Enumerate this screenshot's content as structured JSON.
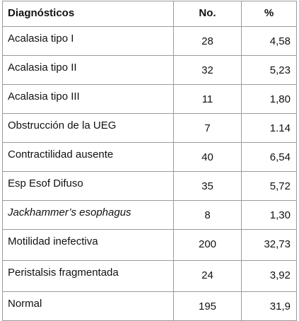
{
  "table": {
    "headers": [
      "Diagnósticos",
      "No.",
      "%"
    ],
    "rows": [
      {
        "diagnosis": "Acalasia tipo I",
        "no": "28",
        "pct": "4,58"
      },
      {
        "diagnosis": "Acalasia tipo II",
        "no": "32",
        "pct": "5,23"
      },
      {
        "diagnosis": "Acalasia tipo III",
        "no": "11",
        "pct": "1,80"
      },
      {
        "diagnosis": "Obstrucción de la UEG",
        "no": "7",
        "pct": "1.14"
      },
      {
        "diagnosis": "Contractilidad ausente",
        "no": "40",
        "pct": "6,54"
      },
      {
        "diagnosis": "Esp Esof Difuso",
        "no": "35",
        "pct": "5,72"
      },
      {
        "diagnosis": "Jackhammer’s esophagus",
        "no": "8",
        "pct": "1,30"
      },
      {
        "diagnosis": "Motilidad inefectiva",
        "no": "200",
        "pct": "32,73"
      },
      {
        "diagnosis": "Peristalsis fragmentada",
        "no": "24",
        "pct": "3,92"
      },
      {
        "diagnosis": "Normal",
        "no": "195",
        "pct": "31,9"
      }
    ]
  }
}
